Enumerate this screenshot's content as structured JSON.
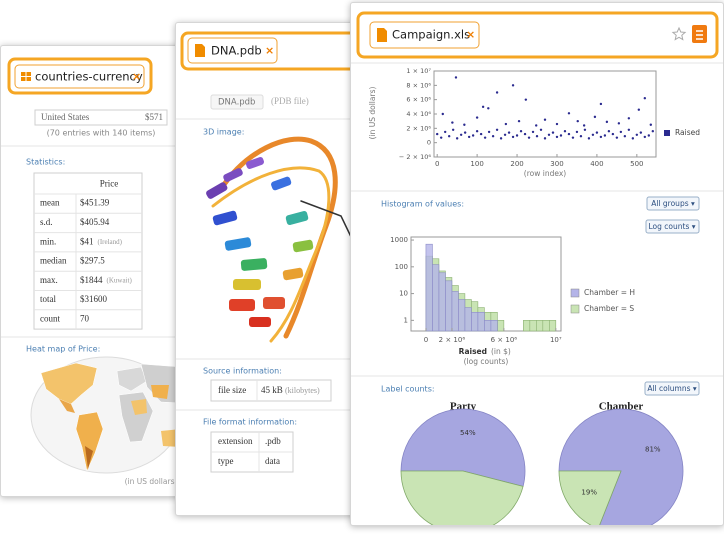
{
  "cards": [
    {
      "tab": "countries-currency",
      "close": "×",
      "preview_row": [
        "United States",
        "$571"
      ],
      "summary": "(70 entries with 140 items)",
      "statistics_heading": "Statistics:",
      "stats_table": {
        "header": "Price",
        "rows": [
          [
            "mean",
            "$451.39"
          ],
          [
            "s.d.",
            "$405.94"
          ],
          [
            "min.",
            "$41",
            "(Ireland)"
          ],
          [
            "median",
            "$297.5"
          ],
          [
            "max.",
            "$1844",
            "(Kuwait)"
          ],
          [
            "total",
            "$31600"
          ],
          [
            "count",
            "70"
          ]
        ]
      },
      "heatmap_heading": "Heat map of Price:",
      "heatmap_note": "(in US dollars)"
    },
    {
      "tab": "DNA.pdb",
      "close": "×",
      "file_chip": "DNA.pdb",
      "file_kind": "(PDB file)",
      "image_heading": "3D image:",
      "source_heading": "Source information:",
      "source_table": [
        [
          "file size",
          "45 kB",
          "(kilobytes)"
        ]
      ],
      "format_heading": "File format information:",
      "format_table": [
        [
          "extension",
          ".pdb"
        ],
        [
          "type",
          "data"
        ]
      ]
    },
    {
      "tab": "Campaign.xls",
      "close": "×",
      "scatter": {
        "type": "scatter",
        "xlabel": "(row index)",
        "ylabel": "(in US dollars)",
        "xlim": [
          -8,
          548
        ],
        "ylim": [
          -2000000,
          10000000
        ],
        "xticks": [
          0,
          100,
          200,
          300,
          400,
          500
        ],
        "yticks": [
          {
            "value": -2000000,
            "label": "− 2 × 10⁶"
          },
          0,
          {
            "value": 2000000,
            "label": "2 × 10⁶"
          },
          {
            "value": 4000000,
            "label": "4 × 10⁶"
          },
          {
            "value": 6000000,
            "label": "6 × 10⁶"
          },
          {
            "value": 8000000,
            "label": "8 × 10⁶"
          },
          {
            "value": 10000000,
            "label": "1 × 10⁷"
          }
        ],
        "series": [
          {
            "name": "Raised",
            "color": "#2b2b8f",
            "x": [
              0,
              10,
              20,
              30,
              40,
              50,
              60,
              70,
              80,
              90,
              100,
              110,
              120,
              130,
              140,
              150,
              160,
              170,
              180,
              190,
              200,
              210,
              220,
              230,
              240,
              250,
              260,
              270,
              280,
              290,
              300,
              310,
              320,
              330,
              340,
              350,
              360,
              370,
              380,
              390,
              400,
              410,
              420,
              430,
              440,
              450,
              460,
              470,
              480,
              490,
              500,
              510,
              520,
              530,
              540,
              14,
              38,
              47,
              68,
              100,
              115,
              128,
              150,
              172,
              190,
              205,
              222,
              248,
              270,
              300,
              330,
              352,
              368,
              395,
              410,
              425,
              455,
              480,
              505,
              520,
              535
            ],
            "values": [
              1200000,
              700000,
              1500000,
              900000,
              1800000,
              600000,
              1100000,
              1400000,
              800000,
              1000000,
              1600000,
              1200000,
              700000,
              1500000,
              900000,
              1800000,
              600000,
              1100000,
              1400000,
              800000,
              1000000,
              1600000,
              1200000,
              700000,
              1500000,
              900000,
              1800000,
              600000,
              1100000,
              1400000,
              800000,
              1000000,
              1600000,
              1200000,
              700000,
              1500000,
              900000,
              1800000,
              600000,
              1100000,
              1400000,
              800000,
              1000000,
              1600000,
              1200000,
              700000,
              1500000,
              900000,
              1800000,
              600000,
              1100000,
              1400000,
              800000,
              1000000,
              1600000,
              4000000,
              2800000,
              9100000,
              2500000,
              3500000,
              5000000,
              4800000,
              7000000,
              2600000,
              8000000,
              3000000,
              6000000,
              2400000,
              3200000,
              2600000,
              4100000,
              3000000,
              2400000,
              3600000,
              5400000,
              2900000,
              2700000,
              3400000,
              4600000,
              6200000,
              2500000
            ]
          }
        ]
      },
      "histogram_heading": "Histogram of values:",
      "groups_button": "All groups ▾",
      "log_button": "Log counts ▾",
      "histogram": {
        "type": "histogram",
        "xlabel": "Raised",
        "xlabel_unit": "(in $)",
        "ylabel_note": "(log counts)",
        "log_y": true,
        "xlim": [
          -1150000,
          10400000
        ],
        "ylim": [
          0.4,
          1300
        ],
        "xticks": [
          0,
          {
            "value": 2000000,
            "label": "2 × 10⁶"
          },
          {
            "value": 6000000,
            "label": "6 × 10⁶"
          },
          {
            "value": 10000000,
            "label": "10⁷"
          }
        ],
        "yticks": [
          1,
          10,
          100,
          1000
        ],
        "bins": [
          0,
          500000,
          1000000,
          1500000,
          2000000,
          2500000,
          3000000,
          3500000,
          4000000,
          4500000,
          5000000,
          5500000,
          6000000,
          6500000,
          7000000,
          7500000,
          8000000,
          8500000,
          9000000,
          9500000,
          10000000
        ],
        "series": [
          {
            "name": "Chamber = S",
            "color": "#c9e4b4",
            "values": [
              250,
              200,
              70,
              40,
              20,
              10,
              6,
              5,
              3,
              2,
              2,
              1,
              0,
              0,
              0,
              1,
              1,
              1,
              1,
              1
            ]
          },
          {
            "name": "Chamber = H",
            "color": "#b4b4e8",
            "values": [
              700,
              120,
              60,
              30,
              12,
              6,
              3,
              2,
              2,
              1,
              1,
              0,
              0,
              0,
              0,
              0,
              0,
              0,
              0,
              0
            ]
          }
        ]
      },
      "labels_heading": "Label counts:",
      "columns_button": "All columns ▾",
      "pies": [
        {
          "type": "pie",
          "title": "Party",
          "values": [
            54,
            46
          ],
          "value_labels": [
            "54%",
            null
          ],
          "colors": [
            "#a6a6e0",
            "#c9e4b4"
          ]
        },
        {
          "type": "pie",
          "title": "Chamber",
          "values": [
            81,
            19
          ],
          "value_labels": [
            "81%",
            "19%"
          ],
          "colors": [
            "#a6a6e0",
            "#c9e4b4"
          ]
        }
      ]
    }
  ]
}
